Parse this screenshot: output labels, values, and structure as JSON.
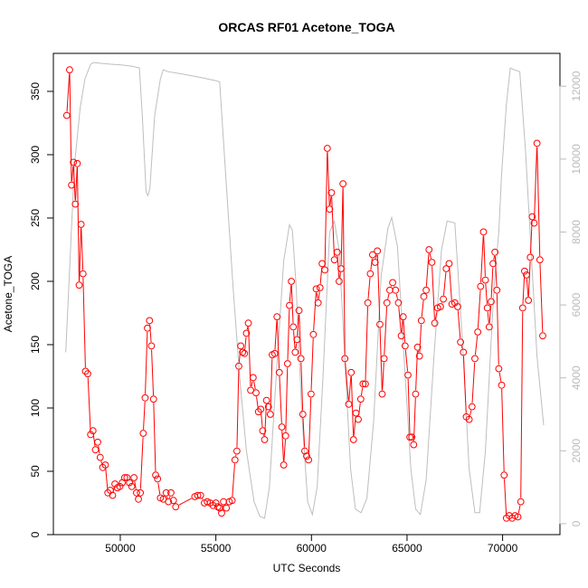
{
  "chart_data": {
    "type": "line",
    "title": "ORCAS RF01 Acetone_TOGA",
    "xlabel": "UTC Seconds",
    "ylabel": "Acetone_TOGA",
    "xlim": [
      46500,
      73000
    ],
    "ylim": [
      0,
      380
    ],
    "y2lim": [
      -300,
      12900
    ],
    "x_ticks": [
      50000,
      55000,
      60000,
      65000,
      70000
    ],
    "y_ticks": [
      0,
      50,
      100,
      150,
      200,
      250,
      300,
      350
    ],
    "y2_ticks": [
      0,
      2000,
      4000,
      6000,
      8000,
      10000,
      12000
    ],
    "colors": {
      "acetone": "#ff0000",
      "altitude": "#bebebe"
    },
    "series": [
      {
        "role": "acetone",
        "markers": "open-circle",
        "points": [
          [
            47200,
            331
          ],
          [
            47350,
            367
          ],
          [
            47450,
            276
          ],
          [
            47550,
            294
          ],
          [
            47650,
            261
          ],
          [
            47750,
            293
          ],
          [
            47850,
            197
          ],
          [
            47950,
            245
          ],
          [
            48050,
            206
          ],
          [
            48180,
            129
          ],
          [
            48300,
            127
          ],
          [
            48450,
            79
          ],
          [
            48570,
            82
          ],
          [
            48700,
            67
          ],
          [
            48820,
            73
          ],
          [
            48950,
            61
          ],
          [
            49080,
            53
          ],
          [
            49220,
            55
          ],
          [
            49350,
            33
          ],
          [
            49480,
            35
          ],
          [
            49600,
            31
          ],
          [
            49720,
            40
          ],
          [
            49850,
            37
          ],
          [
            49980,
            38
          ],
          [
            50100,
            41
          ],
          [
            50230,
            45
          ],
          [
            50350,
            45
          ],
          [
            50480,
            41
          ],
          [
            50600,
            38
          ],
          [
            50720,
            45
          ],
          [
            50850,
            33
          ],
          [
            50950,
            28
          ],
          [
            51050,
            33
          ],
          [
            51200,
            80
          ],
          [
            51300,
            108
          ],
          [
            51420,
            163
          ],
          [
            51530,
            169
          ],
          [
            51630,
            149
          ],
          [
            51740,
            107
          ],
          [
            51850,
            47
          ],
          [
            51950,
            44
          ],
          [
            52100,
            29
          ],
          [
            52250,
            28
          ],
          [
            52400,
            33
          ],
          [
            52520,
            26
          ],
          [
            52650,
            33
          ],
          [
            52780,
            27
          ],
          [
            52900,
            22
          ],
          [
            53900,
            30
          ],
          [
            54050,
            31
          ],
          [
            54200,
            31
          ],
          [
            54400,
            25
          ],
          [
            54550,
            26
          ],
          [
            54700,
            25
          ],
          [
            54850,
            23
          ],
          [
            55000,
            25
          ],
          [
            55100,
            22
          ],
          [
            55200,
            21
          ],
          [
            55300,
            17
          ],
          [
            55400,
            26
          ],
          [
            55550,
            21
          ],
          [
            55700,
            26
          ],
          [
            55850,
            27
          ],
          [
            56000,
            59
          ],
          [
            56100,
            66
          ],
          [
            56200,
            133
          ],
          [
            56300,
            149
          ],
          [
            56400,
            144
          ],
          [
            56500,
            143
          ],
          [
            56600,
            159
          ],
          [
            56700,
            167
          ],
          [
            56820,
            114
          ],
          [
            56950,
            124
          ],
          [
            57100,
            112
          ],
          [
            57230,
            97
          ],
          [
            57350,
            99
          ],
          [
            57450,
            82
          ],
          [
            57550,
            75
          ],
          [
            57650,
            106
          ],
          [
            57750,
            101
          ],
          [
            57850,
            95
          ],
          [
            57950,
            142
          ],
          [
            58080,
            143
          ],
          [
            58200,
            172
          ],
          [
            58320,
            128
          ],
          [
            58450,
            85
          ],
          [
            58550,
            55
          ],
          [
            58650,
            78
          ],
          [
            58750,
            135
          ],
          [
            58850,
            181
          ],
          [
            58950,
            200
          ],
          [
            59050,
            164
          ],
          [
            59150,
            144
          ],
          [
            59250,
            154
          ],
          [
            59350,
            177
          ],
          [
            59450,
            139
          ],
          [
            59550,
            95
          ],
          [
            59650,
            66
          ],
          [
            59750,
            62
          ],
          [
            59850,
            59
          ],
          [
            59980,
            111
          ],
          [
            60100,
            158
          ],
          [
            60250,
            194
          ],
          [
            60350,
            183
          ],
          [
            60450,
            195
          ],
          [
            60560,
            214
          ],
          [
            60700,
            209
          ],
          [
            60830,
            305
          ],
          [
            60950,
            257
          ],
          [
            61050,
            270
          ],
          [
            61200,
            217
          ],
          [
            61350,
            223
          ],
          [
            61450,
            200
          ],
          [
            61550,
            210
          ],
          [
            61650,
            277
          ],
          [
            61750,
            139
          ],
          [
            61950,
            103
          ],
          [
            62080,
            128
          ],
          [
            62200,
            75
          ],
          [
            62330,
            96
          ],
          [
            62450,
            91
          ],
          [
            62580,
            107
          ],
          [
            62700,
            119
          ],
          [
            62820,
            119
          ],
          [
            62950,
            183
          ],
          [
            63080,
            206
          ],
          [
            63200,
            221
          ],
          [
            63330,
            215
          ],
          [
            63450,
            224
          ],
          [
            63580,
            166
          ],
          [
            63700,
            111
          ],
          [
            63800,
            139
          ],
          [
            63950,
            183
          ],
          [
            64100,
            193
          ],
          [
            64250,
            199
          ],
          [
            64400,
            193
          ],
          [
            64550,
            183
          ],
          [
            64700,
            157
          ],
          [
            64800,
            172
          ],
          [
            64900,
            149
          ],
          [
            65050,
            126
          ],
          [
            65150,
            77
          ],
          [
            65250,
            77
          ],
          [
            65350,
            71
          ],
          [
            65450,
            111
          ],
          [
            65550,
            148
          ],
          [
            65650,
            141
          ],
          [
            65750,
            169
          ],
          [
            65880,
            188
          ],
          [
            66000,
            193
          ],
          [
            66150,
            225
          ],
          [
            66300,
            215
          ],
          [
            66450,
            167
          ],
          [
            66600,
            179
          ],
          [
            66750,
            180
          ],
          [
            66900,
            186
          ],
          [
            67050,
            210
          ],
          [
            67200,
            214
          ],
          [
            67350,
            182
          ],
          [
            67500,
            183
          ],
          [
            67650,
            180
          ],
          [
            67800,
            152
          ],
          [
            67950,
            144
          ],
          [
            68100,
            93
          ],
          [
            68250,
            91
          ],
          [
            68400,
            101
          ],
          [
            68550,
            139
          ],
          [
            68700,
            160
          ],
          [
            68850,
            196
          ],
          [
            69000,
            239
          ],
          [
            69100,
            201
          ],
          [
            69200,
            179
          ],
          [
            69300,
            164
          ],
          [
            69400,
            184
          ],
          [
            69500,
            214
          ],
          [
            69600,
            223
          ],
          [
            69700,
            193
          ],
          [
            69800,
            131
          ],
          [
            69950,
            118
          ],
          [
            70080,
            47
          ],
          [
            70200,
            13
          ],
          [
            70350,
            15
          ],
          [
            70500,
            13
          ],
          [
            70650,
            15
          ],
          [
            70800,
            14
          ],
          [
            70950,
            26
          ],
          [
            71050,
            179
          ],
          [
            71150,
            208
          ],
          [
            71250,
            205
          ],
          [
            71350,
            185
          ],
          [
            71450,
            219
          ],
          [
            71550,
            251
          ],
          [
            71650,
            246
          ],
          [
            71800,
            309
          ],
          [
            71950,
            217
          ],
          [
            72100,
            157
          ]
        ]
      },
      {
        "role": "altitude",
        "points": [
          [
            47150,
            4700
          ],
          [
            47350,
            7000
          ],
          [
            47600,
            9800
          ],
          [
            47900,
            11400
          ],
          [
            48150,
            12200
          ],
          [
            48450,
            12600
          ],
          [
            48600,
            12650
          ],
          [
            49100,
            12620
          ],
          [
            49600,
            12600
          ],
          [
            50100,
            12580
          ],
          [
            50600,
            12550
          ],
          [
            51000,
            12500
          ],
          [
            51150,
            11200
          ],
          [
            51350,
            9100
          ],
          [
            51450,
            9000
          ],
          [
            51550,
            9200
          ],
          [
            51800,
            11200
          ],
          [
            52100,
            12200
          ],
          [
            52250,
            12450
          ],
          [
            52500,
            12400
          ],
          [
            53300,
            12330
          ],
          [
            54300,
            12230
          ],
          [
            55000,
            12150
          ],
          [
            55200,
            12120
          ],
          [
            55550,
            9300
          ],
          [
            55900,
            6500
          ],
          [
            56250,
            4000
          ],
          [
            56600,
            2000
          ],
          [
            57000,
            600
          ],
          [
            57300,
            200
          ],
          [
            57550,
            150
          ],
          [
            57800,
            1000
          ],
          [
            58150,
            4000
          ],
          [
            58550,
            7200
          ],
          [
            58850,
            8200
          ],
          [
            59000,
            8050
          ],
          [
            59200,
            6500
          ],
          [
            59500,
            3000
          ],
          [
            59800,
            600
          ],
          [
            60050,
            250
          ],
          [
            60300,
            1000
          ],
          [
            60600,
            4000
          ],
          [
            60950,
            8000
          ],
          [
            61200,
            8300
          ],
          [
            61450,
            7500
          ],
          [
            61700,
            5000
          ],
          [
            62050,
            1500
          ],
          [
            62300,
            400
          ],
          [
            62600,
            300
          ],
          [
            62900,
            700
          ],
          [
            63250,
            2800
          ],
          [
            63650,
            6800
          ],
          [
            64000,
            8100
          ],
          [
            64200,
            8400
          ],
          [
            64500,
            7600
          ],
          [
            64850,
            4500
          ],
          [
            65200,
            1500
          ],
          [
            65450,
            400
          ],
          [
            65700,
            250
          ],
          [
            66000,
            1200
          ],
          [
            66400,
            4500
          ],
          [
            66800,
            7500
          ],
          [
            67100,
            8300
          ],
          [
            67500,
            8250
          ],
          [
            67900,
            5000
          ],
          [
            68250,
            1500
          ],
          [
            68550,
            300
          ],
          [
            68800,
            300
          ],
          [
            69100,
            2000
          ],
          [
            69550,
            6500
          ],
          [
            69800,
            8000
          ],
          [
            69950,
            9600
          ],
          [
            70200,
            11500
          ],
          [
            70400,
            12500
          ],
          [
            70600,
            12450
          ],
          [
            70900,
            12400
          ],
          [
            71200,
            10200
          ],
          [
            71500,
            7400
          ],
          [
            71800,
            4600
          ],
          [
            72150,
            2700
          ]
        ]
      }
    ]
  }
}
